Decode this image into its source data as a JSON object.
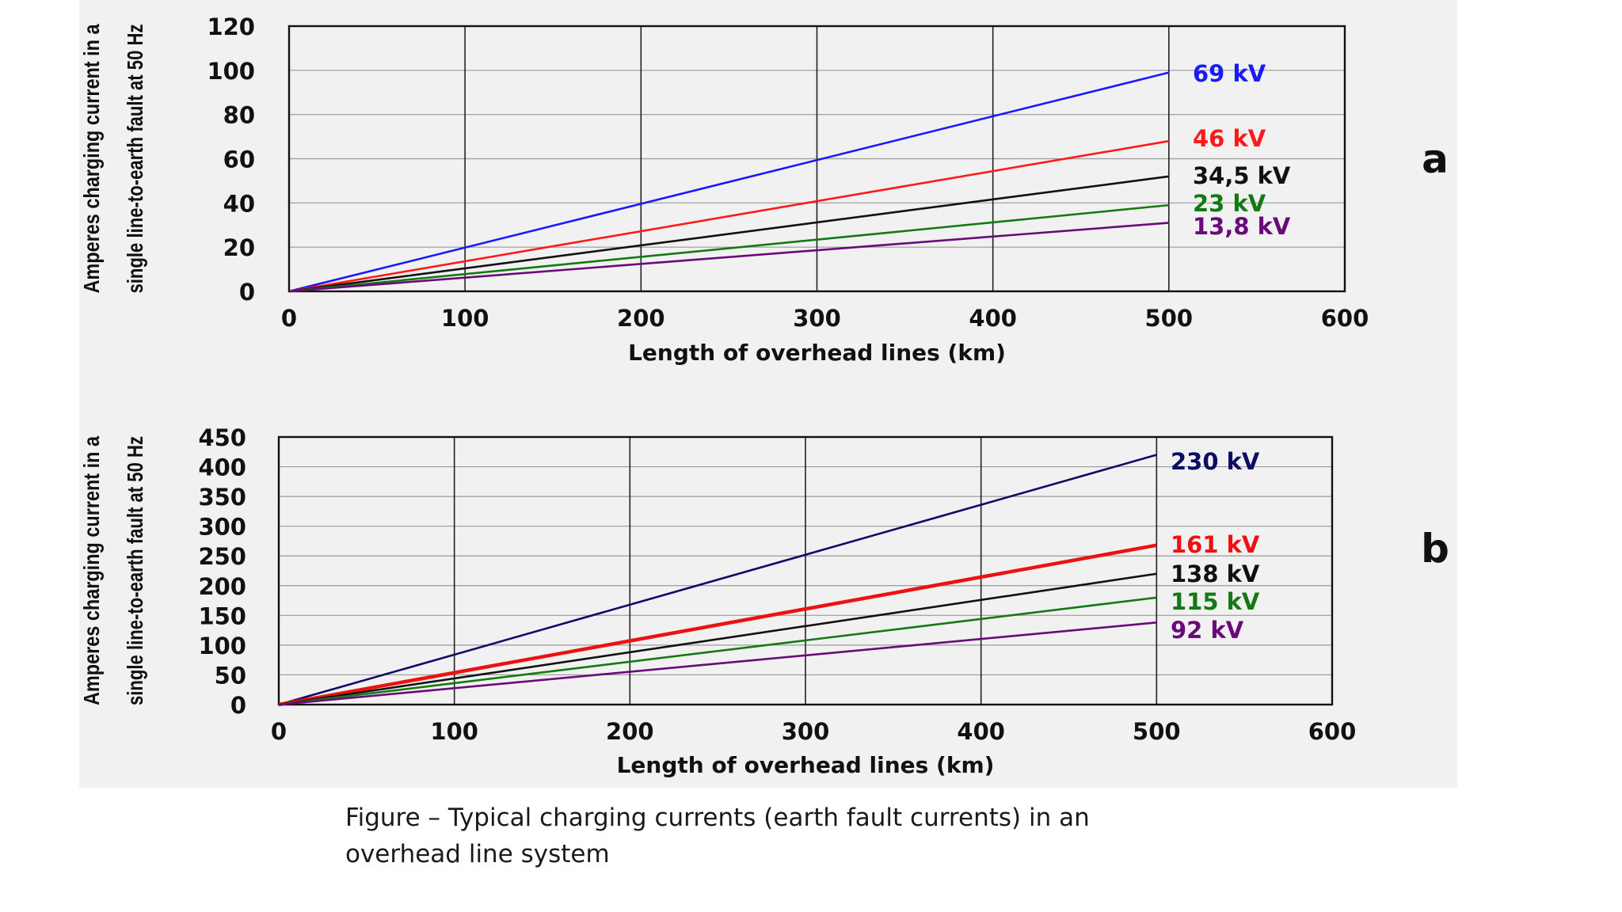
{
  "chart_data": [
    {
      "id": "a",
      "type": "line",
      "panel_label": "a",
      "xlabel": "Length of overhead lines (km)",
      "ylabel_lines": [
        "Amperes charging current in a",
        "single line-to-earth fault at 50 Hz"
      ],
      "xlim": [
        0,
        600
      ],
      "ylim": [
        0,
        120
      ],
      "xticks": [
        0,
        100,
        200,
        300,
        400,
        500,
        600
      ],
      "yticks": [
        0,
        20,
        40,
        60,
        80,
        100,
        120
      ],
      "grid": true,
      "series": [
        {
          "name": "69 kV",
          "color": "#1a1aff",
          "x": [
            0,
            500
          ],
          "y": [
            0,
            99
          ]
        },
        {
          "name": "46 kV",
          "color": "#ff1a1a",
          "x": [
            0,
            500
          ],
          "y": [
            0,
            68
          ]
        },
        {
          "name": "34,5 kV",
          "color": "#111111",
          "x": [
            0,
            500
          ],
          "y": [
            0,
            52
          ]
        },
        {
          "name": "23 kV",
          "color": "#137a13",
          "x": [
            0,
            500
          ],
          "y": [
            0,
            39
          ]
        },
        {
          "name": "13,8 kV",
          "color": "#6a0a7a",
          "x": [
            0,
            500
          ],
          "y": [
            0,
            31
          ]
        }
      ]
    },
    {
      "id": "b",
      "type": "line",
      "panel_label": "b",
      "xlabel": "Length of overhead lines (km)",
      "ylabel_lines": [
        "Amperes charging current in a",
        "single line-to-earth fault at 50 Hz"
      ],
      "xlim": [
        0,
        600
      ],
      "ylim": [
        0,
        450
      ],
      "xticks": [
        0,
        100,
        200,
        300,
        400,
        500,
        600
      ],
      "yticks": [
        0,
        50,
        100,
        150,
        200,
        250,
        300,
        350,
        400,
        450
      ],
      "grid": true,
      "series": [
        {
          "name": "230 kV",
          "color": "#0d0d66",
          "x": [
            0,
            500
          ],
          "y": [
            0,
            420
          ]
        },
        {
          "name": "161 kV",
          "color": "#ee1111",
          "x": [
            0,
            500
          ],
          "y": [
            0,
            268
          ]
        },
        {
          "name": "138 kV",
          "color": "#111111",
          "x": [
            0,
            500
          ],
          "y": [
            0,
            220
          ]
        },
        {
          "name": "115 kV",
          "color": "#137a13",
          "x": [
            0,
            500
          ],
          "y": [
            0,
            180
          ]
        },
        {
          "name": "92 kV",
          "color": "#6a0a7a",
          "x": [
            0,
            500
          ],
          "y": [
            0,
            138
          ]
        }
      ]
    }
  ],
  "caption": "Figure  – Typical charging currents (earth fault currents) in an\noverhead line system"
}
